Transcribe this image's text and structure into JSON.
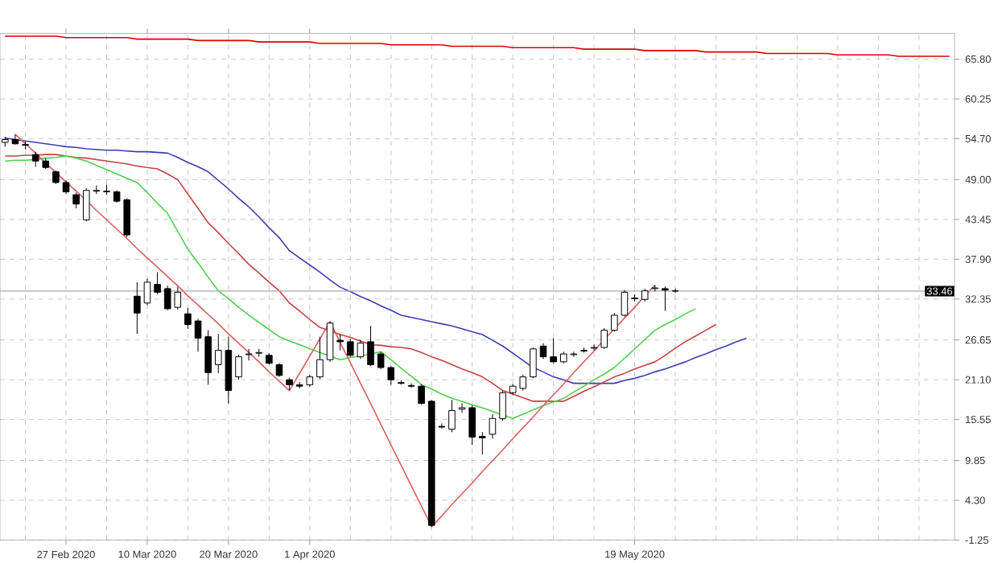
{
  "chart_data": {
    "type": "candlestick",
    "categories": [
      null,
      null,
      null,
      null,
      null,
      null,
      "27 Feb 2020",
      null,
      null,
      null,
      null,
      null,
      null,
      null,
      "10 Mar 2020",
      null,
      null,
      null,
      null,
      null,
      null,
      null,
      "20 Mar 2020",
      null,
      null,
      null,
      null,
      null,
      null,
      null,
      "1 Apr 2020",
      null,
      null,
      null,
      null,
      null,
      null,
      null,
      null,
      null,
      null,
      null,
      null,
      null,
      null,
      null,
      null,
      null,
      null,
      null,
      null,
      null,
      null,
      null,
      null,
      null,
      null,
      null,
      null,
      null,
      null,
      null,
      "19 May 2020",
      null,
      null,
      null,
      null,
      null,
      null,
      null,
      null,
      null,
      null,
      null,
      null,
      null,
      null,
      null,
      null,
      null,
      null,
      null,
      null,
      null,
      null,
      null,
      null,
      null,
      null,
      null,
      null,
      null,
      null,
      null
    ],
    "ohlc": [
      [
        54.2,
        55.0,
        53.6,
        54.6
      ],
      [
        54.6,
        55.3,
        53.9,
        54.0
      ],
      [
        53.9,
        54.3,
        53.2,
        53.8
      ],
      [
        52.5,
        52.9,
        50.8,
        51.6
      ],
      [
        51.6,
        52.0,
        50.5,
        50.7
      ],
      [
        50.1,
        50.3,
        48.4,
        48.6
      ],
      [
        48.6,
        48.9,
        47.0,
        47.3
      ],
      [
        46.9,
        47.2,
        45.0,
        45.6
      ],
      [
        43.4,
        47.8,
        43.2,
        47.5
      ],
      [
        47.4,
        48.2,
        47.0,
        47.5
      ],
      [
        47.4,
        48.3,
        46.9,
        47.3
      ],
      [
        47.3,
        47.5,
        45.8,
        46.0
      ],
      [
        46.2,
        46.4,
        41.0,
        41.3
      ],
      [
        32.75,
        34.7,
        27.5,
        30.4
      ],
      [
        31.8,
        35.2,
        31.5,
        34.7
      ],
      [
        34.4,
        36.1,
        33.0,
        33.3
      ],
      [
        33.8,
        34.2,
        30.8,
        31.0
      ],
      [
        31.2,
        34.0,
        30.9,
        33.3
      ],
      [
        30.3,
        31.1,
        28.2,
        28.8
      ],
      [
        29.3,
        29.6,
        25.0,
        26.9
      ],
      [
        27.1,
        28.0,
        20.4,
        22.1
      ],
      [
        23.2,
        27.5,
        22.0,
        25.2
      ],
      [
        25.2,
        27.1,
        17.8,
        19.6
      ],
      [
        21.5,
        24.6,
        21.1,
        24.3
      ],
      [
        24.6,
        25.4,
        23.8,
        24.7
      ],
      [
        24.8,
        25.4,
        24.3,
        24.9
      ],
      [
        24.5,
        24.8,
        23.2,
        23.4
      ],
      [
        23.2,
        23.4,
        21.5,
        21.7
      ],
      [
        21.1,
        21.4,
        19.6,
        20.4
      ],
      [
        20.4,
        20.8,
        19.9,
        20.2
      ],
      [
        20.4,
        21.8,
        20.1,
        21.5
      ],
      [
        21.5,
        27.1,
        21.2,
        23.9
      ],
      [
        23.9,
        29.2,
        23.6,
        29.0
      ],
      [
        26.6,
        27.5,
        25.2,
        26.4
      ],
      [
        26.4,
        26.8,
        24.3,
        24.5
      ],
      [
        24.3,
        26.6,
        24.0,
        26.2
      ],
      [
        26.4,
        28.6,
        23.0,
        23.2
      ],
      [
        24.7,
        25.0,
        22.6,
        22.8
      ],
      [
        22.8,
        23.0,
        20.4,
        21.1
      ],
      [
        20.7,
        21.0,
        20.4,
        20.6
      ],
      [
        20.3,
        20.6,
        20.0,
        20.2
      ],
      [
        20.2,
        20.5,
        17.6,
        17.8
      ],
      [
        18.1,
        18.3,
        0.6,
        0.8
      ],
      [
        14.6,
        15.0,
        14.3,
        14.5
      ],
      [
        14.2,
        18.3,
        13.8,
        16.8
      ],
      [
        17.0,
        17.8,
        16.5,
        17.2
      ],
      [
        17.2,
        17.5,
        12.0,
        13.1
      ],
      [
        13.2,
        13.8,
        10.7,
        13.0
      ],
      [
        13.5,
        16.3,
        12.9,
        15.7
      ],
      [
        15.7,
        19.5,
        15.4,
        19.3
      ],
      [
        19.3,
        20.5,
        19.0,
        20.2
      ],
      [
        19.9,
        21.8,
        19.6,
        21.5
      ],
      [
        21.5,
        25.6,
        21.3,
        25.4
      ],
      [
        25.8,
        26.2,
        24.0,
        24.3
      ],
      [
        24.3,
        26.9,
        23.4,
        23.6
      ],
      [
        23.6,
        25.0,
        23.4,
        24.7
      ],
      [
        24.6,
        25.0,
        24.3,
        24.7
      ],
      [
        25.1,
        25.6,
        24.9,
        25.2
      ],
      [
        25.5,
        26.0,
        25.2,
        25.6
      ],
      [
        25.6,
        28.3,
        25.4,
        28.0
      ],
      [
        28.0,
        30.4,
        27.8,
        30.1
      ],
      [
        30.1,
        33.6,
        29.9,
        33.3
      ],
      [
        32.5,
        33.0,
        32.0,
        32.4
      ],
      [
        32.3,
        33.8,
        32.0,
        33.5
      ],
      [
        33.8,
        34.3,
        33.4,
        33.9
      ],
      [
        33.8,
        34.1,
        30.7,
        33.6
      ],
      [
        33.5,
        33.8,
        33.2,
        33.46
      ],
      null,
      null,
      null,
      null,
      null,
      null,
      null,
      null,
      null,
      null,
      null,
      null,
      null,
      null,
      null,
      null,
      null,
      null,
      null,
      null,
      null,
      null,
      null,
      null,
      null,
      null,
      null
    ],
    "series": [
      {
        "type": "line",
        "color": "#e00000",
        "values": [
          69.0,
          69.0,
          69.0,
          69.0,
          69.0,
          69.0,
          68.8,
          68.8,
          68.8,
          68.8,
          68.8,
          68.8,
          68.8,
          68.6,
          68.6,
          68.6,
          68.6,
          68.6,
          68.6,
          68.4,
          68.4,
          68.4,
          68.4,
          68.4,
          68.4,
          68.2,
          68.2,
          68.2,
          68.2,
          68.2,
          68.2,
          68.0,
          68.0,
          68.0,
          68.0,
          68.0,
          68.0,
          68.0,
          67.8,
          67.8,
          67.8,
          67.8,
          67.8,
          67.8,
          67.6,
          67.6,
          67.6,
          67.6,
          67.6,
          67.6,
          67.4,
          67.4,
          67.4,
          67.4,
          67.4,
          67.4,
          67.4,
          67.2,
          67.2,
          67.2,
          67.2,
          67.2,
          67.2,
          67.0,
          67.0,
          67.0,
          67.0,
          67.0,
          67.0,
          66.8,
          66.8,
          66.8,
          66.8,
          66.8,
          66.8,
          66.6,
          66.6,
          66.6,
          66.6,
          66.6,
          66.6,
          66.6,
          66.4,
          66.4,
          66.4,
          66.4,
          66.4,
          66.4,
          66.2,
          66.2,
          66.2,
          66.2,
          66.2,
          66.2
        ]
      },
      {
        "type": "line",
        "color": "#3c3cb4",
        "values": [
          54.8,
          54.6,
          54.4,
          54.2,
          54.0,
          53.8,
          53.6,
          53.5,
          53.3,
          53.2,
          53.1,
          53.1,
          53.0,
          52.9,
          52.9,
          52.8,
          52.7,
          52.1,
          51.4,
          50.8,
          50.1,
          48.9,
          47.7,
          46.4,
          45.2,
          43.8,
          42.3,
          40.9,
          39.1,
          38.1,
          37.1,
          36.1,
          35.0,
          34.0,
          33.4,
          32.7,
          32.1,
          31.4,
          30.8,
          30.1,
          29.8,
          29.5,
          29.2,
          28.9,
          28.6,
          28.2,
          27.8,
          27.4,
          26.6,
          25.8,
          24.8,
          23.8,
          22.8,
          22.2,
          21.5,
          21.1,
          20.6,
          20.6,
          20.6,
          20.6,
          20.6,
          21.0,
          21.3,
          21.7,
          22.2,
          22.6,
          23.1,
          23.6,
          24.2,
          24.7,
          25.3,
          25.8,
          26.4,
          26.9,
          null,
          null,
          null,
          null,
          null,
          null,
          null,
          null,
          null,
          null,
          null,
          null,
          null,
          null,
          null,
          null,
          null,
          null,
          null,
          null
        ]
      },
      {
        "type": "line",
        "color": "#c84040",
        "values": [
          52.3,
          52.3,
          52.4,
          52.4,
          52.5,
          52.5,
          52.3,
          52.1,
          52.0,
          51.8,
          51.6,
          51.4,
          51.2,
          50.9,
          50.7,
          50.5,
          49.8,
          49.0,
          47.0,
          45.0,
          43.0,
          41.6,
          40.1,
          38.7,
          37.2,
          36.0,
          34.7,
          33.5,
          31.8,
          30.7,
          29.5,
          28.4,
          27.9,
          27.4,
          27.0,
          26.5,
          26.0,
          25.9,
          25.7,
          25.6,
          25.4,
          24.9,
          24.3,
          23.8,
          23.2,
          22.6,
          22.1,
          21.5,
          20.6,
          19.6,
          19.1,
          18.6,
          18.1,
          18.1,
          18.1,
          18.1,
          18.8,
          19.5,
          20.1,
          20.8,
          21.5,
          22.0,
          22.6,
          23.1,
          23.6,
          24.5,
          25.5,
          26.4,
          27.2,
          28.0,
          28.8,
          null,
          null,
          null,
          null,
          null,
          null,
          null,
          null,
          null,
          null,
          null,
          null,
          null,
          null,
          null,
          null,
          null,
          null,
          null,
          null,
          null,
          null,
          null
        ]
      },
      {
        "type": "line",
        "color": "#50d050",
        "values": [
          51.6,
          51.7,
          51.7,
          51.8,
          52.0,
          52.1,
          52.3,
          52.0,
          51.6,
          51.0,
          50.4,
          49.8,
          49.2,
          48.6,
          47.2,
          45.7,
          44.3,
          41.8,
          39.3,
          37.4,
          35.4,
          33.5,
          32.4,
          31.2,
          30.1,
          29.1,
          28.1,
          27.1,
          26.5,
          26.0,
          25.4,
          24.9,
          24.4,
          23.9,
          24.2,
          24.4,
          24.7,
          25.0,
          23.9,
          22.7,
          21.6,
          20.4,
          19.8,
          19.1,
          18.5,
          18.1,
          17.6,
          17.2,
          16.7,
          16.2,
          15.7,
          16.3,
          16.9,
          17.5,
          18.0,
          18.5,
          19.4,
          20.2,
          21.1,
          21.9,
          22.8,
          24.1,
          25.4,
          26.7,
          28.0,
          28.8,
          29.5,
          30.3,
          31.0,
          null,
          null,
          null,
          null,
          null,
          null,
          null,
          null,
          null,
          null,
          null,
          null,
          null,
          null,
          null,
          null,
          null,
          null,
          null,
          null,
          null,
          null,
          null,
          null,
          null
        ]
      },
      {
        "type": "line",
        "color": "#d86060",
        "values": [
          null,
          55.3,
          54.0,
          52.7,
          51.3,
          50.0,
          48.7,
          47.4,
          46.1,
          44.7,
          43.4,
          42.1,
          40.8,
          39.4,
          38.1,
          36.8,
          35.5,
          34.2,
          32.8,
          31.5,
          30.2,
          28.9,
          27.5,
          26.2,
          24.9,
          23.6,
          22.2,
          20.9,
          19.6,
          22.0,
          24.4,
          26.8,
          29.2,
          26.3,
          23.5,
          20.6,
          17.8,
          14.9,
          12.0,
          9.2,
          6.3,
          3.5,
          0.6,
          2.1,
          3.7,
          5.2,
          6.7,
          8.3,
          9.8,
          11.3,
          12.9,
          14.4,
          15.9,
          17.5,
          19.0,
          20.5,
          22.1,
          23.6,
          25.1,
          26.7,
          28.2,
          29.7,
          31.2,
          32.8,
          34.3,
          null,
          null,
          null,
          null,
          null,
          null,
          null,
          null,
          null,
          null,
          null,
          null,
          null,
          null,
          null,
          null,
          null,
          null,
          null,
          null,
          null,
          null,
          null,
          null,
          null,
          null,
          null,
          null,
          null
        ]
      }
    ],
    "ylim": [
      -1.25,
      69.4
    ],
    "yticks": [
      -1.25,
      {
        "value": 4.3,
        "label": "4.30"
      },
      9.85,
      15.55,
      {
        "value": 21.1,
        "label": "21.10"
      },
      26.65,
      32.35,
      {
        "value": 37.9,
        "label": "37.90"
      },
      43.45,
      {
        "value": 49,
        "label": "49.00"
      },
      {
        "value": 54.7,
        "label": "54.70"
      },
      60.25,
      {
        "value": 65.8,
        "label": "65.80"
      }
    ],
    "grid": true,
    "ref_lines": [
      {
        "axis": "y",
        "value": 33.46,
        "label": "33.46",
        "color": "#a8a8a8"
      }
    ]
  }
}
